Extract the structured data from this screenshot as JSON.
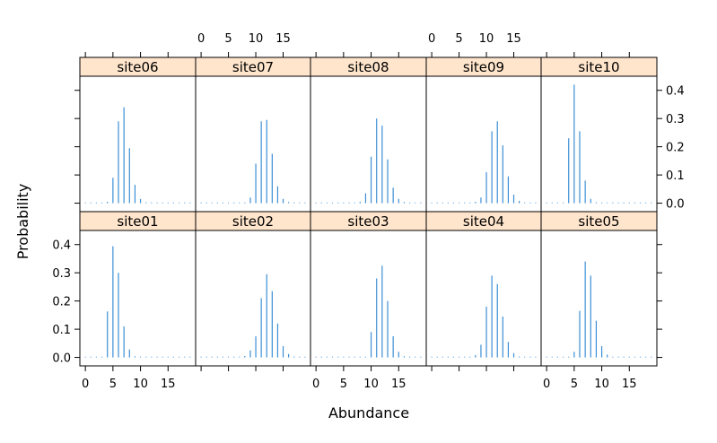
{
  "chart_data": {
    "type": "bar",
    "xlabel": "Abundance",
    "ylabel": "Probability",
    "xlim": [
      -1,
      20
    ],
    "ylim": [
      -0.03,
      0.45
    ],
    "x_ticks": [
      0,
      5,
      10,
      15
    ],
    "y_ticks": [
      0.0,
      0.1,
      0.2,
      0.3,
      0.4
    ],
    "x": [
      0,
      1,
      2,
      3,
      4,
      5,
      6,
      7,
      8,
      9,
      10,
      11,
      12,
      13,
      14,
      15,
      16,
      17,
      18,
      19
    ],
    "colors": {
      "bars": "#3d8fd6",
      "strip": "#ffe5cc",
      "axis": "#000000"
    },
    "panels": [
      {
        "name": "site01",
        "values": [
          0,
          0,
          0,
          0,
          0.163,
          0.394,
          0.3,
          0.11,
          0.028,
          0.004,
          0.001,
          0.001,
          0.001,
          0.001,
          0.001,
          0.001,
          0.001,
          0.001,
          0.001,
          0.001
        ]
      },
      {
        "name": "site02",
        "values": [
          0,
          0,
          0,
          0,
          0,
          0,
          0,
          0.001,
          0.005,
          0.025,
          0.075,
          0.21,
          0.295,
          0.235,
          0.12,
          0.04,
          0.012,
          0.003,
          0.001,
          0.001
        ]
      },
      {
        "name": "site03",
        "values": [
          0,
          0,
          0,
          0,
          0,
          0,
          0,
          0,
          0,
          0,
          0.09,
          0.28,
          0.325,
          0.2,
          0.075,
          0.02,
          0.004,
          0.001,
          0.001,
          0.001
        ]
      },
      {
        "name": "site04",
        "values": [
          0,
          0,
          0,
          0,
          0,
          0,
          0,
          0.001,
          0.008,
          0.045,
          0.18,
          0.29,
          0.26,
          0.145,
          0.055,
          0.015,
          0.003,
          0.001,
          0.001,
          0.001
        ]
      },
      {
        "name": "site05",
        "values": [
          0,
          0,
          0,
          0,
          0,
          0.02,
          0.165,
          0.34,
          0.29,
          0.13,
          0.04,
          0.01,
          0.002,
          0.001,
          0.001,
          0.001,
          0.001,
          0.001,
          0.001,
          0.001
        ]
      },
      {
        "name": "site06",
        "values": [
          0,
          0,
          0,
          0,
          0.005,
          0.09,
          0.29,
          0.34,
          0.195,
          0.065,
          0.015,
          0.003,
          0.001,
          0.001,
          0.001,
          0.001,
          0.001,
          0.001,
          0.001,
          0.001
        ]
      },
      {
        "name": "site07",
        "values": [
          0,
          0,
          0,
          0,
          0,
          0,
          0,
          0,
          0.001,
          0.02,
          0.14,
          0.29,
          0.295,
          0.175,
          0.06,
          0.015,
          0.004,
          0.001,
          0.001,
          0.001
        ]
      },
      {
        "name": "site08",
        "values": [
          0,
          0,
          0,
          0,
          0,
          0,
          0,
          0.001,
          0.005,
          0.035,
          0.165,
          0.3,
          0.275,
          0.155,
          0.055,
          0.015,
          0.004,
          0.001,
          0.001,
          0.001
        ]
      },
      {
        "name": "site09",
        "values": [
          0,
          0,
          0,
          0,
          0,
          0,
          0,
          0.001,
          0.005,
          0.02,
          0.11,
          0.255,
          0.29,
          0.205,
          0.095,
          0.03,
          0.008,
          0.002,
          0.001,
          0.001
        ]
      },
      {
        "name": "site10",
        "values": [
          0,
          0,
          0,
          0,
          0.23,
          0.42,
          0.255,
          0.08,
          0.015,
          0.003,
          0.001,
          0.001,
          0.001,
          0.001,
          0.001,
          0.001,
          0.001,
          0.001,
          0.001,
          0.001
        ]
      }
    ]
  }
}
